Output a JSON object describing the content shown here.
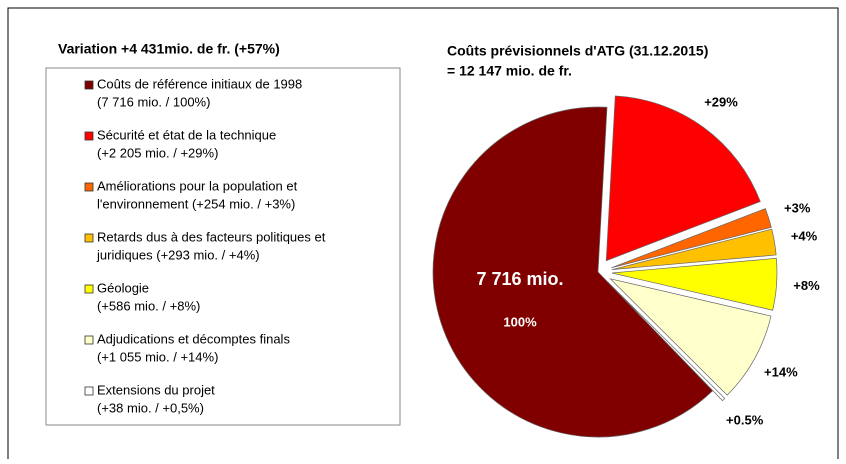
{
  "chart_data": {
    "type": "pie",
    "title": "Coûts prévisionnels d'ATG (31.12.2015)",
    "subtitle": "= 12 147 mio. de fr.",
    "legend_title": "Variation +4 431mio. de fr. (+57%)",
    "legend": [
      [
        "Coûts de référence initiaux de 1998",
        "(7 716 mio. / 100%)"
      ],
      [
        "Sécurité et état de la technique",
        "(+2 205 mio. / +29%)"
      ],
      [
        "Améliorations pour la population et",
        "l'environnement (+254 mio. / +3%)"
      ],
      [
        "Retards dus à des facteurs politiques et",
        "juridiques (+293 mio. / +4%)"
      ],
      [
        "Géologie",
        "(+586 mio. / +8%)"
      ],
      [
        "Adjudications et décomptes finals",
        "(+1 055 mio. / +14%)"
      ],
      [
        "Extensions du projet",
        "(+38 mio. / +0,5%)"
      ]
    ],
    "values": [
      100,
      29,
      3,
      4,
      8,
      14,
      0.5
    ],
    "value_labels": [
      "100%",
      "+29%",
      "+3%",
      "+4%",
      "+8%",
      "+14%",
      "+0.5%"
    ],
    "colors": [
      "#800000",
      "#ff0000",
      "#ff6600",
      "#ffc000",
      "#ffff00",
      "#ffffcc",
      "#ffffff"
    ],
    "annotation": "7 716 mio."
  }
}
